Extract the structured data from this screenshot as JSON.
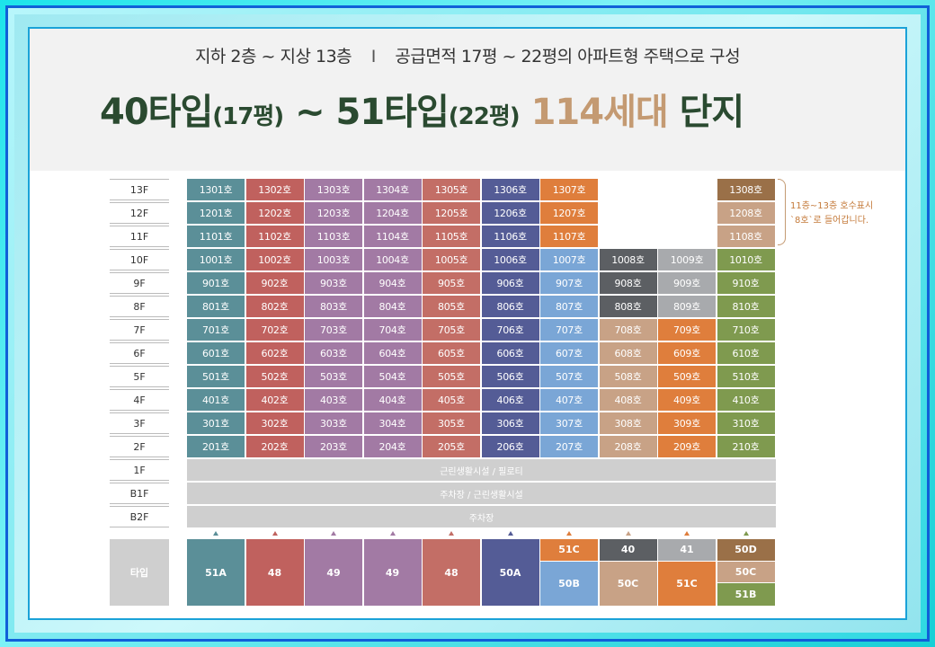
{
  "header": {
    "subtitle_left": "지하 2층 ~ 지상 13층",
    "subtitle_sep": "I",
    "subtitle_right": "공급면적 17평 ~ 22평의 아파트형 주택으로 구성",
    "title_part1": "40타입",
    "title_part2": "(17평)",
    "title_part3": " ~ 51타입",
    "title_part4": "(22평)",
    "title_accent": " 114세대",
    "title_end": " 단지"
  },
  "colors": {
    "teal": "#5b8f98",
    "red": "#c0615e",
    "violet": "#a27aa4",
    "coral": "#c36e66",
    "navy": "#545c96",
    "orange": "#df7e3c",
    "lightblue": "#7aa6d6",
    "charcoal": "#5c5f63",
    "silver": "#a8aaad",
    "tan": "#c8a286",
    "brown": "#9a7048",
    "olive": "#7f9a4f",
    "lightgray": "#cfcfcf"
  },
  "floors": [
    "13F",
    "12F",
    "11F",
    "10F",
    "9F",
    "8F",
    "7F",
    "6F",
    "5F",
    "4F",
    "3F",
    "2F",
    "1F",
    "B1F",
    "B2F"
  ],
  "units": [
    {
      "floor": "13F",
      "cells": [
        [
          "1301호",
          "teal"
        ],
        [
          "1302호",
          "red"
        ],
        [
          "1303호",
          "violet"
        ],
        [
          "1304호",
          "violet"
        ],
        [
          "1305호",
          "coral"
        ],
        [
          "1306호",
          "navy"
        ],
        [
          "1307호",
          "orange"
        ],
        null,
        null,
        [
          "1308호",
          "brown"
        ]
      ]
    },
    {
      "floor": "12F",
      "cells": [
        [
          "1201호",
          "teal"
        ],
        [
          "1202호",
          "red"
        ],
        [
          "1203호",
          "violet"
        ],
        [
          "1204호",
          "violet"
        ],
        [
          "1205호",
          "coral"
        ],
        [
          "1206호",
          "navy"
        ],
        [
          "1207호",
          "orange"
        ],
        null,
        null,
        [
          "1208호",
          "tan"
        ]
      ]
    },
    {
      "floor": "11F",
      "cells": [
        [
          "1101호",
          "teal"
        ],
        [
          "1102호",
          "red"
        ],
        [
          "1103호",
          "violet"
        ],
        [
          "1104호",
          "violet"
        ],
        [
          "1105호",
          "coral"
        ],
        [
          "1106호",
          "navy"
        ],
        [
          "1107호",
          "orange"
        ],
        null,
        null,
        [
          "1108호",
          "tan"
        ]
      ]
    },
    {
      "floor": "10F",
      "cells": [
        [
          "1001호",
          "teal"
        ],
        [
          "1002호",
          "red"
        ],
        [
          "1003호",
          "violet"
        ],
        [
          "1004호",
          "violet"
        ],
        [
          "1005호",
          "coral"
        ],
        [
          "1006호",
          "navy"
        ],
        [
          "1007호",
          "lightblue"
        ],
        [
          "1008호",
          "charcoal"
        ],
        [
          "1009호",
          "silver"
        ],
        [
          "1010호",
          "olive"
        ]
      ]
    },
    {
      "floor": "9F",
      "cells": [
        [
          "901호",
          "teal"
        ],
        [
          "902호",
          "red"
        ],
        [
          "903호",
          "violet"
        ],
        [
          "904호",
          "violet"
        ],
        [
          "905호",
          "coral"
        ],
        [
          "906호",
          "navy"
        ],
        [
          "907호",
          "lightblue"
        ],
        [
          "908호",
          "charcoal"
        ],
        [
          "909호",
          "silver"
        ],
        [
          "910호",
          "olive"
        ]
      ]
    },
    {
      "floor": "8F",
      "cells": [
        [
          "801호",
          "teal"
        ],
        [
          "802호",
          "red"
        ],
        [
          "803호",
          "violet"
        ],
        [
          "804호",
          "violet"
        ],
        [
          "805호",
          "coral"
        ],
        [
          "806호",
          "navy"
        ],
        [
          "807호",
          "lightblue"
        ],
        [
          "808호",
          "charcoal"
        ],
        [
          "809호",
          "silver"
        ],
        [
          "810호",
          "olive"
        ]
      ]
    },
    {
      "floor": "7F",
      "cells": [
        [
          "701호",
          "teal"
        ],
        [
          "702호",
          "red"
        ],
        [
          "703호",
          "violet"
        ],
        [
          "704호",
          "violet"
        ],
        [
          "705호",
          "coral"
        ],
        [
          "706호",
          "navy"
        ],
        [
          "707호",
          "lightblue"
        ],
        [
          "708호",
          "tan"
        ],
        [
          "709호",
          "orange"
        ],
        [
          "710호",
          "olive"
        ]
      ]
    },
    {
      "floor": "6F",
      "cells": [
        [
          "601호",
          "teal"
        ],
        [
          "602호",
          "red"
        ],
        [
          "603호",
          "violet"
        ],
        [
          "604호",
          "violet"
        ],
        [
          "605호",
          "coral"
        ],
        [
          "606호",
          "navy"
        ],
        [
          "607호",
          "lightblue"
        ],
        [
          "608호",
          "tan"
        ],
        [
          "609호",
          "orange"
        ],
        [
          "610호",
          "olive"
        ]
      ]
    },
    {
      "floor": "5F",
      "cells": [
        [
          "501호",
          "teal"
        ],
        [
          "502호",
          "red"
        ],
        [
          "503호",
          "violet"
        ],
        [
          "504호",
          "violet"
        ],
        [
          "505호",
          "coral"
        ],
        [
          "506호",
          "navy"
        ],
        [
          "507호",
          "lightblue"
        ],
        [
          "508호",
          "tan"
        ],
        [
          "509호",
          "orange"
        ],
        [
          "510호",
          "olive"
        ]
      ]
    },
    {
      "floor": "4F",
      "cells": [
        [
          "401호",
          "teal"
        ],
        [
          "402호",
          "red"
        ],
        [
          "403호",
          "violet"
        ],
        [
          "404호",
          "violet"
        ],
        [
          "405호",
          "coral"
        ],
        [
          "406호",
          "navy"
        ],
        [
          "407호",
          "lightblue"
        ],
        [
          "408호",
          "tan"
        ],
        [
          "409호",
          "orange"
        ],
        [
          "410호",
          "olive"
        ]
      ]
    },
    {
      "floor": "3F",
      "cells": [
        [
          "301호",
          "teal"
        ],
        [
          "302호",
          "red"
        ],
        [
          "303호",
          "violet"
        ],
        [
          "304호",
          "violet"
        ],
        [
          "305호",
          "coral"
        ],
        [
          "306호",
          "navy"
        ],
        [
          "307호",
          "lightblue"
        ],
        [
          "308호",
          "tan"
        ],
        [
          "309호",
          "orange"
        ],
        [
          "310호",
          "olive"
        ]
      ]
    },
    {
      "floor": "2F",
      "cells": [
        [
          "201호",
          "teal"
        ],
        [
          "202호",
          "red"
        ],
        [
          "203호",
          "violet"
        ],
        [
          "204호",
          "violet"
        ],
        [
          "205호",
          "coral"
        ],
        [
          "206호",
          "navy"
        ],
        [
          "207호",
          "lightblue"
        ],
        [
          "208호",
          "tan"
        ],
        [
          "209호",
          "orange"
        ],
        [
          "210호",
          "olive"
        ]
      ]
    }
  ],
  "bands": [
    {
      "floor": "1F",
      "label": "근린생활시설 / 필로티"
    },
    {
      "floor": "B1F",
      "label": "주차장 / 근린생활시설"
    },
    {
      "floor": "B2F",
      "label": "주차장"
    }
  ],
  "marker_colors": [
    "teal",
    "red",
    "violet",
    "violet",
    "coral",
    "navy",
    "orange",
    "tan",
    "orange",
    "olive"
  ],
  "type_label": "타입",
  "types": [
    [
      {
        "label": "51A",
        "color": "teal"
      }
    ],
    [
      {
        "label": "48",
        "color": "red"
      }
    ],
    [
      {
        "label": "49",
        "color": "violet"
      }
    ],
    [
      {
        "label": "49",
        "color": "violet"
      }
    ],
    [
      {
        "label": "48",
        "color": "coral"
      }
    ],
    [
      {
        "label": "50A",
        "color": "navy"
      }
    ],
    [
      {
        "label": "51C",
        "color": "orange",
        "span": 1
      },
      {
        "label": "50B",
        "color": "lightblue",
        "span": 2
      }
    ],
    [
      {
        "label": "40",
        "color": "charcoal",
        "span": 1
      },
      {
        "label": "50C",
        "color": "tan",
        "span": 2
      }
    ],
    [
      {
        "label": "41",
        "color": "silver",
        "span": 1
      },
      {
        "label": "51C",
        "color": "orange",
        "span": 2
      }
    ],
    [
      {
        "label": "50D",
        "color": "brown",
        "span": 1
      },
      {
        "label": "50C",
        "color": "tan",
        "span": 1
      },
      {
        "label": "51B",
        "color": "olive",
        "span": 1
      }
    ]
  ],
  "note": {
    "line1": "11층~13층 호수표시",
    "line2": "`8호`로 들어갑니다."
  }
}
